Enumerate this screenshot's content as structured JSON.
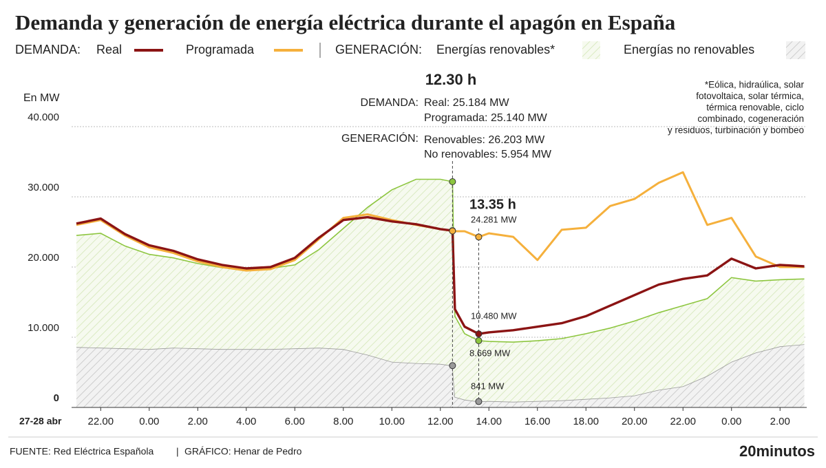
{
  "chart_data": {
    "type": "line",
    "title": "Demanda y generación de energía eléctrica durante el apagón en España",
    "y_axis_label": "En MW",
    "x_axis_label": "27-28 abr",
    "legend_groups": [
      "DEMANDA:",
      "GENERACIÓN:"
    ],
    "footnote": [
      "*Eólica, hidraúlica, solar",
      "fotovoltaica, solar térmica,",
      "térmica renovable, ciclo",
      "combinado, cogeneración",
      "y residuos, turbinación y bombeo"
    ],
    "annotations": {
      "time_a": "12.30 h",
      "demand_label": "DEMANDA:",
      "real": "Real: 25.184 MW",
      "programmed": "Programada: 25.140 MW",
      "generation_label": "GENERACIÓN:",
      "renewable": "Renovables: 26.203 MW",
      "non_renewable": "No renovables: 5.954 MW",
      "time_b": "13.35 h",
      "programmed_b": "24.281 MW",
      "real_b": "10.480 MW",
      "renewable_b": "8.669 MW",
      "non_renewable_b": "841 MW"
    },
    "source": "FUENTE: Red Eléctrica Española",
    "credit": "GRÁFICO: Henar de Pedro",
    "brand": "20minutos",
    "x": [
      21,
      22,
      23,
      24,
      25,
      26,
      27,
      28,
      29,
      30,
      31,
      32,
      33,
      34,
      35,
      36,
      36.5,
      36.6,
      37,
      37.58,
      38,
      39,
      40,
      41,
      42,
      43,
      44,
      45,
      46,
      47,
      48,
      49,
      50,
      51
    ],
    "xlim": [
      20.8,
      51.1
    ],
    "xticks": [
      {
        "value": 22,
        "label": "22.00"
      },
      {
        "value": 24,
        "label": "0.00"
      },
      {
        "value": 26,
        "label": "2.00"
      },
      {
        "value": 28,
        "label": "4.00"
      },
      {
        "value": 30,
        "label": "6.00"
      },
      {
        "value": 32,
        "label": "8.00"
      },
      {
        "value": 34,
        "label": "10.00"
      },
      {
        "value": 36,
        "label": "12.00"
      },
      {
        "value": 38,
        "label": "14.00"
      },
      {
        "value": 40,
        "label": "16.00"
      },
      {
        "value": 42,
        "label": "18.00"
      },
      {
        "value": 44,
        "label": "20.00"
      },
      {
        "value": 46,
        "label": "22.00"
      },
      {
        "value": 48,
        "label": "0.00"
      },
      {
        "value": 50,
        "label": "2.00"
      }
    ],
    "ylim": [
      0,
      40000
    ],
    "yticks": [
      0,
      {
        "value": 10000,
        "label": "10.000"
      },
      {
        "value": 20000,
        "label": "20.000"
      },
      {
        "value": 30000,
        "label": "30.000"
      },
      {
        "value": 40000,
        "label": "40.000"
      }
    ],
    "grid": true,
    "series": [
      {
        "name": "Energías no renovables",
        "kind": "area",
        "stacked": true,
        "color": "#9a9a9a",
        "hatch": "#c4c4c4",
        "background": "#f2f2f2",
        "values": [
          8600,
          8500,
          8400,
          8300,
          8500,
          8400,
          8300,
          8300,
          8300,
          8400,
          8500,
          8300,
          7500,
          6500,
          6300,
          6200,
          5954,
          1500,
          1100,
          841,
          900,
          800,
          900,
          1000,
          1200,
          1400,
          1700,
          2500,
          3000,
          4500,
          6500,
          7800,
          8700,
          9000
        ]
      },
      {
        "name": "Energías renovables*",
        "kind": "area",
        "stacked": true,
        "color": "#8dc63f",
        "hatch": "#d3e6b6",
        "background": "#f6faef",
        "values": [
          15900,
          16300,
          14600,
          13500,
          12800,
          12100,
          11600,
          11300,
          11500,
          11900,
          14000,
          17200,
          21000,
          24500,
          26200,
          26300,
          26203,
          11500,
          9400,
          8669,
          8500,
          8500,
          8600,
          8800,
          9300,
          9900,
          10600,
          11000,
          11500,
          11000,
          12000,
          10200,
          9500,
          9300
        ]
      },
      {
        "name": "Real",
        "kind": "line",
        "color": "#8b1414",
        "values": [
          26200,
          26900,
          24700,
          23100,
          22300,
          21100,
          20300,
          19800,
          20000,
          21300,
          24200,
          26700,
          27100,
          26500,
          26100,
          25400,
          25184,
          14000,
          11500,
          10480,
          10700,
          11000,
          11500,
          12000,
          13000,
          14500,
          16000,
          17500,
          18300,
          18800,
          21200,
          19800,
          20300,
          20100
        ]
      },
      {
        "name": "Programada",
        "kind": "line",
        "color": "#f5b03c",
        "values": [
          26000,
          26700,
          24500,
          22800,
          22000,
          20800,
          20000,
          19500,
          19700,
          21000,
          24000,
          27000,
          27500,
          26700,
          26000,
          25400,
          25140,
          25100,
          25100,
          24281,
          24800,
          24300,
          21000,
          25300,
          25600,
          28700,
          29700,
          32000,
          33500,
          26000,
          27000,
          21500,
          20000,
          20000
        ]
      }
    ]
  }
}
